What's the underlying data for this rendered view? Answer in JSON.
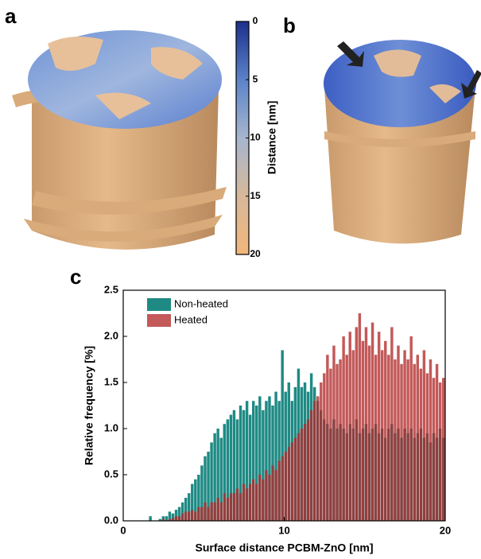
{
  "panels": [
    "a",
    "b",
    "c"
  ],
  "chart_data": [
    {
      "type": "colorbar",
      "ylabel": "Distance [nm]",
      "ylim": [
        0,
        20
      ],
      "yticks": [
        0,
        5,
        10,
        15,
        20
      ],
      "colors": [
        "#1c2f8c",
        "#5b83c9",
        "#a7b6cf",
        "#d7b89a",
        "#f3b67a"
      ]
    },
    {
      "type": "histogram",
      "xlabel": "Surface distance PCBM-ZnO [nm]",
      "ylabel": "Relative frequency [%]",
      "xlim": [
        0,
        20
      ],
      "xticks": [
        0,
        10,
        20
      ],
      "ylim": [
        0,
        2.5
      ],
      "yticks": [
        {
          "value": 0,
          "label": "0.0"
        },
        0.5,
        {
          "value": 1,
          "label": "1.0"
        },
        1.5,
        {
          "value": 2,
          "label": "2.0"
        },
        2.5
      ],
      "legend": "upper left",
      "bins": [
        0,
        0.2,
        0.4,
        0.6,
        0.8,
        1,
        1.2,
        1.4,
        1.6,
        1.8,
        2,
        2.2,
        2.4,
        2.6,
        2.8,
        3,
        3.2,
        3.4,
        3.6,
        3.8,
        4,
        4.2,
        4.4,
        4.6,
        4.8,
        5,
        5.2,
        5.4,
        5.6,
        5.8,
        6,
        6.2,
        6.4,
        6.6,
        6.8,
        7,
        7.2,
        7.4,
        7.6,
        7.8,
        8,
        8.2,
        8.4,
        8.6,
        8.8,
        9,
        9.2,
        9.4,
        9.6,
        9.8,
        10,
        10.2,
        10.4,
        10.6,
        10.8,
        11,
        11.2,
        11.4,
        11.6,
        11.8,
        12,
        12.2,
        12.4,
        12.6,
        12.8,
        13,
        13.2,
        13.4,
        13.6,
        13.8,
        14,
        14.2,
        14.4,
        14.6,
        14.8,
        15,
        15.2,
        15.4,
        15.6,
        15.8,
        16,
        16.2,
        16.4,
        16.6,
        16.8,
        17,
        17.2,
        17.4,
        17.6,
        17.8,
        18,
        18.2,
        18.4,
        18.6,
        18.8,
        19,
        19.2,
        19.4,
        19.6,
        19.8,
        20
      ],
      "series": [
        {
          "name": "Non-heated",
          "color": "#1f8a84",
          "values": [
            0,
            0,
            0,
            0,
            0,
            0,
            0,
            0,
            0.05,
            0,
            0,
            0.02,
            0.05,
            0.05,
            0.1,
            0.08,
            0.12,
            0.15,
            0.2,
            0.25,
            0.3,
            0.4,
            0.45,
            0.5,
            0.6,
            0.7,
            0.75,
            0.85,
            0.95,
            1.0,
            0.9,
            1.05,
            1.1,
            1.15,
            1.2,
            1.1,
            1.25,
            1.2,
            1.3,
            1.15,
            1.3,
            1.25,
            1.35,
            1.2,
            1.3,
            1.35,
            1.25,
            1.4,
            1.3,
            1.85,
            1.4,
            1.5,
            1.3,
            1.45,
            1.65,
            1.45,
            1.5,
            1.4,
            1.6,
            1.45,
            1.3,
            1.2,
            1.1,
            1.05,
            1.0,
            1.1,
            1.0,
            1.05,
            1.0,
            0.95,
            1.05,
            1.0,
            1.1,
            0.95,
            1.0,
            1.05,
            0.95,
            1.0,
            1.05,
            0.95,
            1.0,
            0.9,
            1.0,
            1.05,
            0.95,
            1.0,
            0.9,
            1.0,
            0.95,
            1.0,
            0.9,
            0.95,
            1.0,
            0.9,
            0.95,
            0.85,
            0.95,
            0.9,
            1.0,
            0.9
          ]
        },
        {
          "name": "Heated",
          "color": "#b22a2a",
          "values": [
            0,
            0,
            0,
            0,
            0,
            0,
            0,
            0,
            0,
            0,
            0,
            0,
            0.02,
            0,
            0.02,
            0.03,
            0.05,
            0.05,
            0.08,
            0.1,
            0.1,
            0.12,
            0.1,
            0.15,
            0.15,
            0.2,
            0.15,
            0.2,
            0.2,
            0.25,
            0.2,
            0.3,
            0.25,
            0.3,
            0.3,
            0.35,
            0.3,
            0.4,
            0.35,
            0.4,
            0.45,
            0.4,
            0.5,
            0.45,
            0.55,
            0.5,
            0.6,
            0.55,
            0.65,
            0.7,
            0.75,
            0.8,
            0.85,
            0.9,
            0.95,
            1.0,
            1.05,
            1.1,
            1.2,
            1.3,
            1.35,
            1.5,
            1.6,
            1.8,
            1.65,
            1.9,
            1.7,
            1.75,
            2.0,
            1.8,
            2.05,
            1.85,
            2.1,
            2.25,
            1.95,
            2.1,
            1.9,
            2.15,
            1.8,
            2.05,
            1.85,
            1.95,
            1.8,
            2.1,
            1.75,
            1.9,
            1.7,
            1.85,
            1.75,
            2.0,
            1.7,
            1.8,
            1.65,
            1.85,
            1.6,
            1.75,
            1.55,
            1.7,
            1.5,
            1.55
          ]
        }
      ]
    }
  ]
}
